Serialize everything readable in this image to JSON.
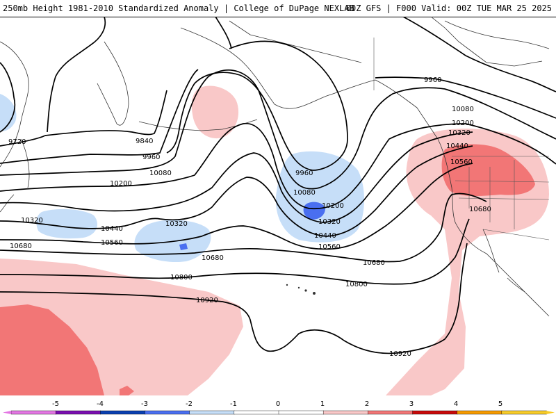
{
  "header": {
    "title": "250mb Height 1981-2010 Standardized Anomaly | College of DuPage NEXLAB",
    "run_info": "00Z GFS | F000 Valid: 00Z TUE MAR 25 2025"
  },
  "colors": {
    "neg5": "#e377e3",
    "neg4": "#7a0fb0",
    "neg3": "#0a3fb0",
    "neg2": "#4a6ff0",
    "neg1": "#c6def8",
    "zero": "#ffffff",
    "pos1": "#f9c8c8",
    "pos2": "#f27676",
    "pos3": "#c80a0a",
    "pos4": "#f59a00",
    "pos5": "#f7cc2a"
  },
  "contour_labels": [
    {
      "id": "9720",
      "text": "9720"
    },
    {
      "id": "9840",
      "text": "9840"
    },
    {
      "id": "9960a",
      "text": "9960"
    },
    {
      "id": "10080a",
      "text": "10080"
    },
    {
      "id": "10200a",
      "text": "10200"
    },
    {
      "id": "10320a",
      "text": "10320"
    },
    {
      "id": "10440a",
      "text": "10440"
    },
    {
      "id": "10560a",
      "text": "10560"
    },
    {
      "id": "10680a",
      "text": "10680"
    },
    {
      "id": "10320b",
      "text": "10320"
    },
    {
      "id": "10680b",
      "text": "10680"
    },
    {
      "id": "10800a",
      "text": "10800"
    },
    {
      "id": "10920a",
      "text": "10920"
    },
    {
      "id": "9960b",
      "text": "9960"
    },
    {
      "id": "10080b",
      "text": "10080"
    },
    {
      "id": "10200b",
      "text": "10200"
    },
    {
      "id": "10320c",
      "text": "10320"
    },
    {
      "id": "10440b",
      "text": "10440"
    },
    {
      "id": "10560b",
      "text": "10560"
    },
    {
      "id": "10680c",
      "text": "10680"
    },
    {
      "id": "10800b",
      "text": "10800"
    },
    {
      "id": "10920b",
      "text": "10920"
    },
    {
      "id": "9960c",
      "text": "9960"
    },
    {
      "id": "10080c",
      "text": "10080"
    },
    {
      "id": "10200c",
      "text": "10200"
    },
    {
      "id": "10320d",
      "text": "10320"
    },
    {
      "id": "10440c",
      "text": "10440"
    },
    {
      "id": "10560c",
      "text": "10560"
    },
    {
      "id": "10680d",
      "text": "10680"
    }
  ],
  "legend": {
    "ticks": [
      "-5",
      "-4",
      "-3",
      "-2",
      "-1",
      "0",
      "1",
      "2",
      "3",
      "4",
      "5"
    ]
  }
}
